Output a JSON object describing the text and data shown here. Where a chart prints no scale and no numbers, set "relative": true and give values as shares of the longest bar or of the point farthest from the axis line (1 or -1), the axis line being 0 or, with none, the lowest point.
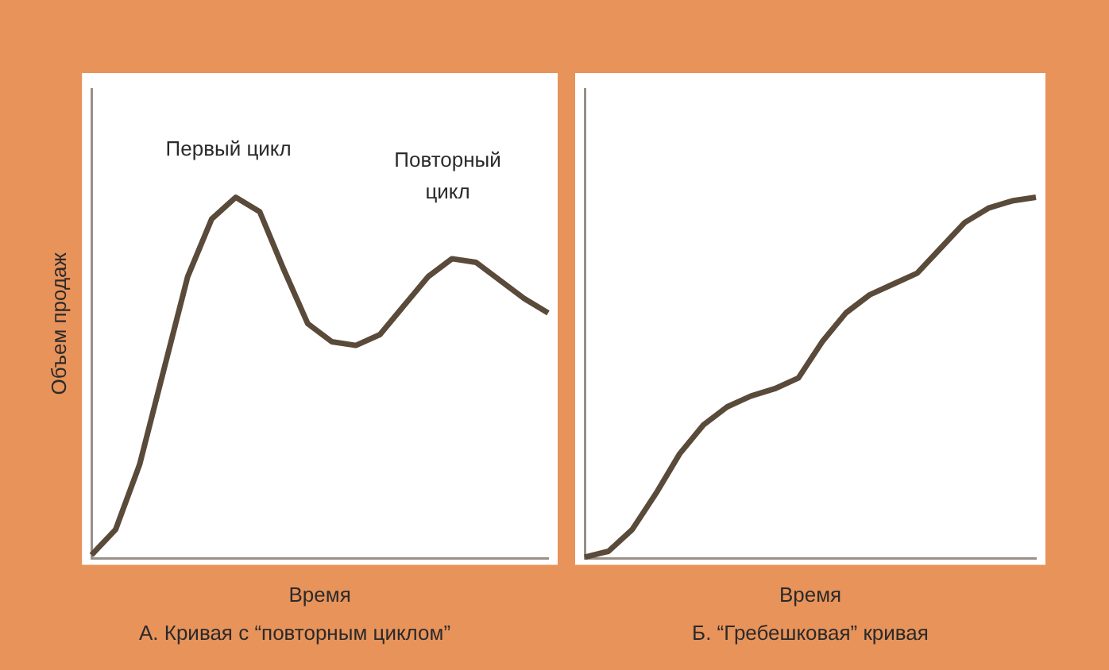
{
  "chart_data": [
    {
      "type": "line",
      "relative": true,
      "title": "А. Кривая с “повторным циклом”",
      "xlabel": "Время",
      "ylabel": "Объем продаж",
      "categories": [
        null,
        null,
        null,
        null,
        null,
        null,
        null,
        null,
        null,
        null,
        null,
        null,
        null,
        null,
        null,
        null,
        null,
        null,
        null,
        null
      ],
      "series": [
        {
          "color": "#5a4a3a",
          "values": [
            0.01,
            0.08,
            0.26,
            0.52,
            0.78,
            0.94,
            1,
            0.96,
            0.8,
            0.65,
            0.6,
            0.59,
            0.62,
            0.7,
            0.78,
            0.83,
            0.82,
            0.77,
            0.72,
            0.68
          ]
        }
      ],
      "annotations": [
        "Первый цикл",
        "Повторный цикл"
      ],
      "legend": false,
      "grid": false,
      "marker": "none",
      "tick_labels": false
    },
    {
      "type": "line",
      "relative": true,
      "title": "Б. “Гребешковая” кривая",
      "xlabel": "Время",
      "categories": [
        null,
        null,
        null,
        null,
        null,
        null,
        null,
        null,
        null,
        null,
        null,
        null,
        null,
        null,
        null,
        null,
        null,
        null,
        null,
        null
      ],
      "series": [
        {
          "color": "#5a4a3a",
          "values": [
            0.004,
            0.02,
            0.08,
            0.18,
            0.29,
            0.37,
            0.42,
            0.45,
            0.47,
            0.5,
            0.6,
            0.68,
            0.73,
            0.76,
            0.79,
            0.86,
            0.93,
            0.97,
            0.99,
            1
          ]
        }
      ],
      "legend": false,
      "grid": false,
      "marker": "none",
      "tick_labels": false
    }
  ]
}
